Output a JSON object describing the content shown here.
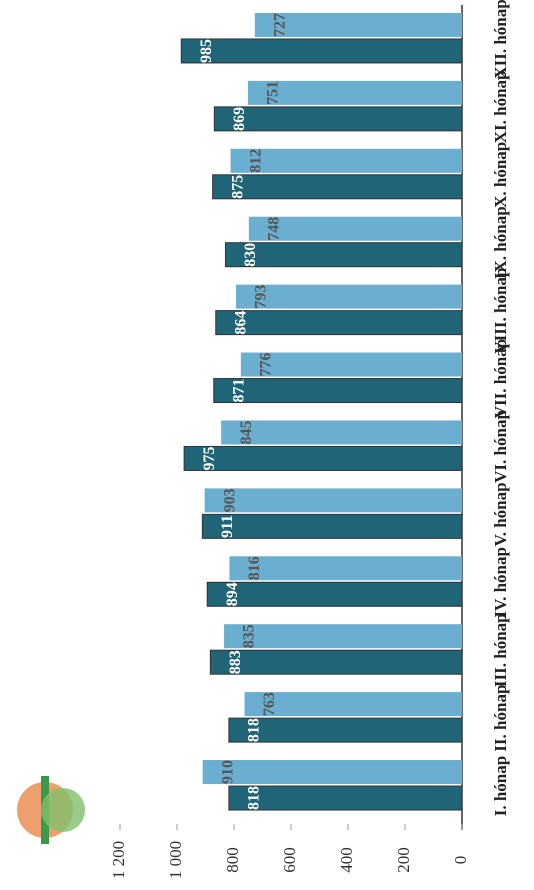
{
  "chart_data": {
    "type": "bar",
    "categories": [
      "I. hónap",
      "II. hónap",
      "III. hónap",
      "IV. hónap",
      "V. hónap",
      "VI. hónap",
      "VII. hónap",
      "VIII. hónap",
      "IX. hónap",
      "X. hónap",
      "XI. hónap",
      "XII. hónap"
    ],
    "series": [
      {
        "color": "#1f6477",
        "values": [
          818,
          818,
          883,
          894,
          911,
          975,
          871,
          864,
          830,
          875,
          869,
          985
        ]
      },
      {
        "color": "#6aaed0",
        "values": [
          910,
          763,
          835,
          816,
          903,
          845,
          776,
          793,
          748,
          812,
          751,
          727
        ]
      }
    ],
    "ylim": [
      0,
      1200
    ],
    "yticks": [
      0,
      200,
      400,
      600,
      800,
      {
        "value": 1000,
        "label": "1 000"
      },
      {
        "value": 1200,
        "label": "1 200"
      }
    ]
  }
}
